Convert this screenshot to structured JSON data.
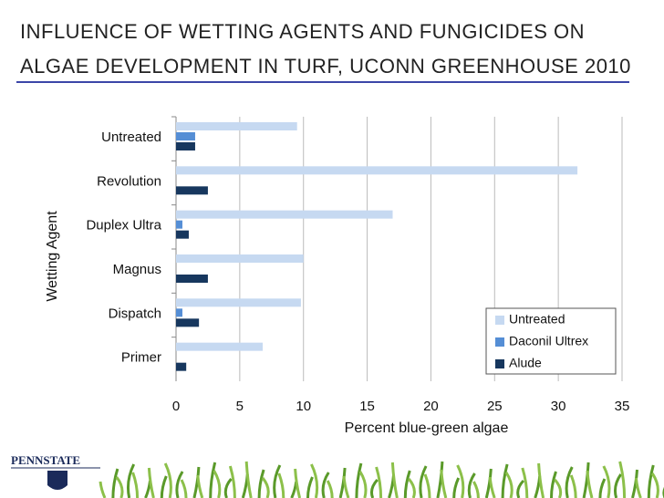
{
  "chart_data": {
    "type": "bar",
    "orientation": "horizontal",
    "title": "INFLUENCE OF WETTING AGENTS AND FUNGICIDES ON ALGAE DEVELOPMENT IN TURF, UCONN GREENHOUSE 2010",
    "x_label": "Percent blue-green algae",
    "y_label": "Wetting Agent",
    "categories": [
      "Untreated",
      "Revolution",
      "Duplex Ultra",
      "Magnus",
      "Dispatch",
      "Primer"
    ],
    "series": [
      {
        "name": "Untreated",
        "color": "#c6d9f1",
        "values": [
          9.5,
          31.5,
          17,
          10,
          9.8,
          6.8
        ]
      },
      {
        "name": "Daconil Ultrex",
        "color": "#558ed5",
        "values": [
          1.5,
          0,
          0.5,
          0,
          0.5,
          0
        ]
      },
      {
        "name": "Alude",
        "color": "#17375e",
        "values": [
          1.5,
          2.5,
          1.0,
          2.5,
          1.8,
          0.8
        ]
      }
    ],
    "xlim": [
      0,
      35
    ],
    "xticks": [
      0,
      5,
      10,
      15,
      20,
      25,
      30,
      35
    ],
    "grid": true,
    "legend": "lower right"
  },
  "logo": "PENNSTATE"
}
